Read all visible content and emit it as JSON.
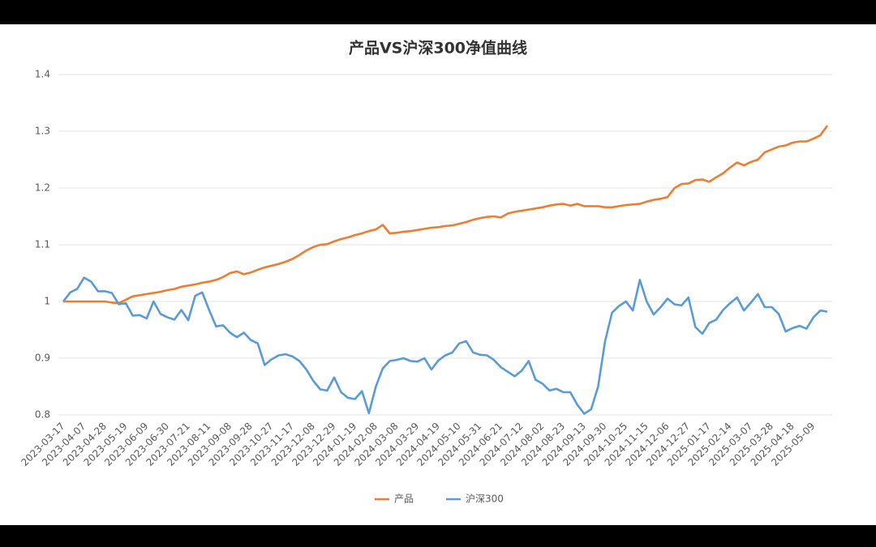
{
  "chart_data": {
    "type": "line",
    "title": "产品VS沪深300净值曲线",
    "categories": [
      "2023-03-17",
      null,
      null,
      "2023-04-07",
      null,
      null,
      "2023-04-28",
      null,
      null,
      "2023-05-19",
      null,
      null,
      "2023-06-09",
      null,
      null,
      "2023-06-30",
      null,
      null,
      "2023-07-21",
      null,
      null,
      "2023-08-11",
      null,
      null,
      "2023-09-08",
      null,
      null,
      "2023-09-28",
      null,
      null,
      "2023-10-27",
      null,
      null,
      "2023-11-17",
      null,
      null,
      "2023-12-08",
      null,
      null,
      "2023-12-29",
      null,
      null,
      "2024-01-19",
      null,
      null,
      "2024-02-08",
      null,
      null,
      "2024-03-08",
      null,
      null,
      "2024-03-29",
      null,
      null,
      "2024-04-19",
      null,
      null,
      "2024-05-10",
      null,
      null,
      "2024-05-31",
      null,
      null,
      "2024-06-21",
      null,
      null,
      "2024-07-12",
      null,
      null,
      "2024-08-02",
      null,
      null,
      "2024-08-23",
      null,
      null,
      "2024-09-13",
      null,
      null,
      "2024-09-30",
      null,
      null,
      "2024-10-25",
      null,
      null,
      "2024-11-15",
      null,
      null,
      "2024-12-06",
      null,
      null,
      "2024-12-27",
      null,
      null,
      "2025-01-17",
      null,
      null,
      "2025-02-14",
      null,
      null,
      "2025-03-07",
      null,
      null,
      "2025-03-28",
      null,
      null,
      "2025-04-18",
      null,
      null,
      "2025-05-09",
      null,
      null
    ],
    "series": [
      {
        "name": "产品",
        "color": "#ed7d31",
        "values": [
          1.0,
          1.0,
          1.0,
          1.0,
          1.0,
          1.0,
          1.0,
          0.998,
          0.997,
          1.003,
          1.009,
          1.011,
          1.013,
          1.015,
          1.017,
          1.02,
          1.022,
          1.026,
          1.028,
          1.03,
          1.033,
          1.035,
          1.038,
          1.043,
          1.05,
          1.053,
          1.048,
          1.051,
          1.056,
          1.06,
          1.063,
          1.066,
          1.07,
          1.075,
          1.082,
          1.09,
          1.096,
          1.1,
          1.101,
          1.106,
          1.11,
          1.113,
          1.117,
          1.12,
          1.124,
          1.127,
          1.135,
          1.12,
          1.121,
          1.123,
          1.124,
          1.126,
          1.128,
          1.13,
          1.131,
          1.133,
          1.134,
          1.137,
          1.14,
          1.144,
          1.147,
          1.149,
          1.15,
          1.148,
          1.155,
          1.158,
          1.16,
          1.162,
          1.164,
          1.166,
          1.169,
          1.171,
          1.172,
          1.169,
          1.172,
          1.168,
          1.168,
          1.168,
          1.166,
          1.166,
          1.168,
          1.17,
          1.171,
          1.172,
          1.176,
          1.179,
          1.181,
          1.184,
          1.2,
          1.207,
          1.208,
          1.214,
          1.215,
          1.211,
          1.219,
          1.226,
          1.236,
          1.245,
          1.24,
          1.246,
          1.25,
          1.263,
          1.268,
          1.273,
          1.275,
          1.28,
          1.282,
          1.282,
          1.287,
          1.293,
          1.31
        ]
      },
      {
        "name": "沪深300",
        "color": "#5b9bd5",
        "values": [
          1.0,
          1.016,
          1.022,
          1.042,
          1.035,
          1.018,
          1.018,
          1.015,
          0.995,
          0.997,
          0.975,
          0.976,
          0.97,
          1.0,
          0.978,
          0.972,
          0.968,
          0.985,
          0.967,
          1.01,
          1.016,
          0.985,
          0.956,
          0.958,
          0.945,
          0.937,
          0.945,
          0.932,
          0.926,
          0.888,
          0.898,
          0.905,
          0.907,
          0.903,
          0.895,
          0.88,
          0.86,
          0.845,
          0.843,
          0.866,
          0.84,
          0.83,
          0.828,
          0.842,
          0.803,
          0.85,
          0.882,
          0.895,
          0.897,
          0.9,
          0.895,
          0.894,
          0.9,
          0.88,
          0.896,
          0.905,
          0.91,
          0.926,
          0.93,
          0.91,
          0.906,
          0.905,
          0.897,
          0.884,
          0.876,
          0.868,
          0.878,
          0.895,
          0.862,
          0.855,
          0.843,
          0.846,
          0.84,
          0.84,
          0.818,
          0.802,
          0.81,
          0.85,
          0.93,
          0.98,
          0.992,
          1.0,
          0.984,
          1.038,
          1.0,
          0.977,
          0.99,
          1.005,
          0.995,
          0.993,
          1.007,
          0.955,
          0.943,
          0.962,
          0.968,
          0.985,
          0.997,
          1.007,
          0.984,
          0.998,
          1.013,
          0.99,
          0.99,
          0.978,
          0.947,
          0.953,
          0.957,
          0.952,
          0.972,
          0.984,
          0.982
        ]
      }
    ],
    "ylim": [
      0.8,
      1.4
    ],
    "yticks": [
      0.8,
      0.9,
      1,
      1.1,
      1.2,
      1.3,
      1.4
    ],
    "grid": true,
    "legend": "bottom"
  }
}
